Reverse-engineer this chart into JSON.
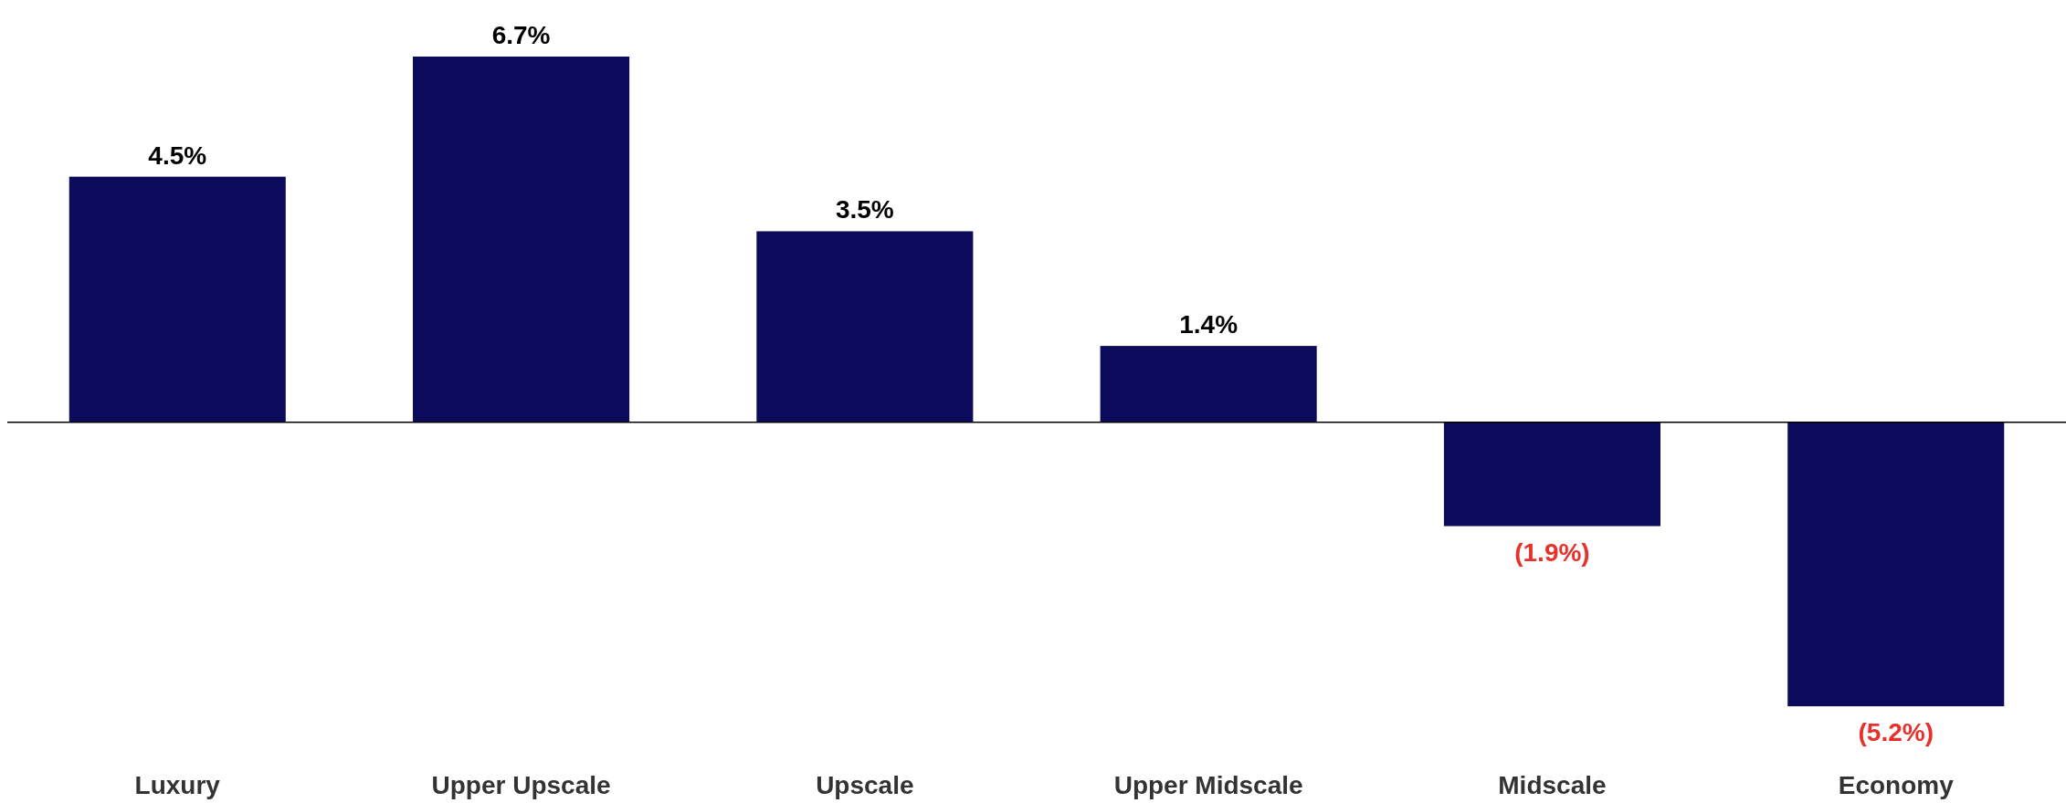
{
  "chart_data": {
    "type": "bar",
    "categories": [
      "Luxury",
      "Upper Upscale",
      "Upscale",
      "Upper Midscale",
      "Midscale",
      "Economy"
    ],
    "values": [
      4.5,
      6.7,
      3.5,
      1.4,
      -1.9,
      -5.2
    ],
    "value_labels": [
      "4.5%",
      "6.7%",
      "3.5%",
      "1.4%",
      "(1.9%)",
      "(5.2%)"
    ],
    "color": "#0c0a5a"
  }
}
